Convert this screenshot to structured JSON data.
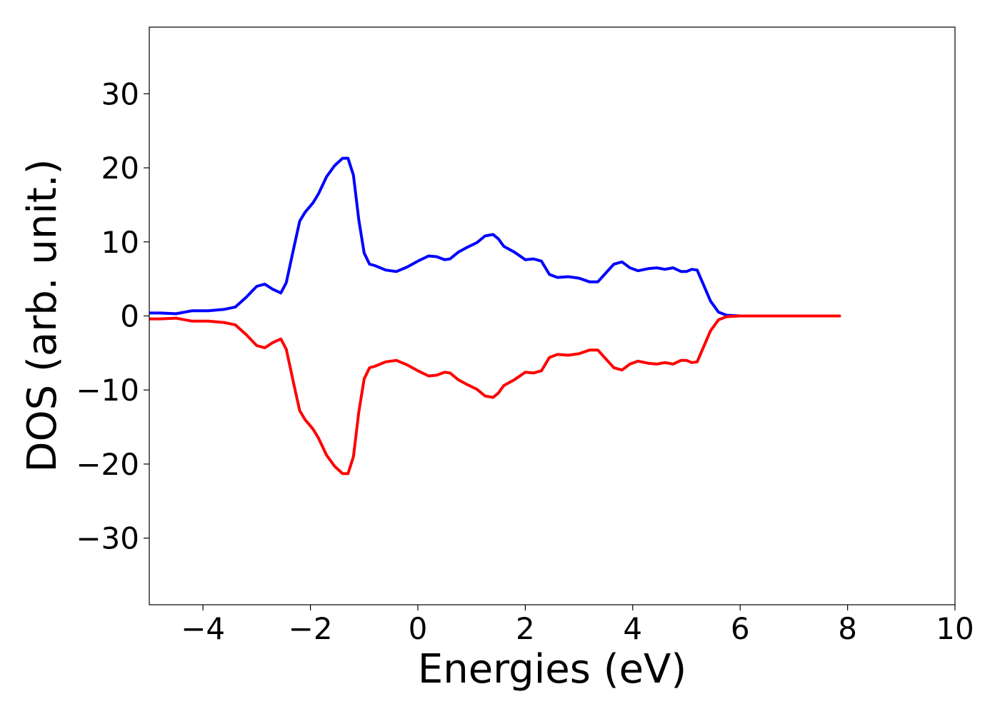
{
  "chart_data": {
    "type": "line",
    "title": "",
    "xlabel": "Energies (eV)",
    "ylabel": "DOS (arb. unit.)",
    "xlim": [
      -5,
      10
    ],
    "ylim": [
      -39,
      39
    ],
    "x_ticks": [
      -4,
      -2,
      0,
      2,
      4,
      6,
      8,
      10
    ],
    "x_tick_labels": [
      "−4",
      "−2",
      "0",
      "2",
      "4",
      "6",
      "8",
      "10"
    ],
    "y_ticks": [
      -30,
      -20,
      -10,
      0,
      10,
      20,
      30
    ],
    "y_tick_labels": [
      "−30",
      "−20",
      "−10",
      "0",
      "10",
      "20",
      "30"
    ],
    "grid": false,
    "legend": false,
    "series": [
      {
        "color": "#0000ff",
        "x": [
          -5.0,
          -4.8,
          -4.5,
          -4.2,
          -3.9,
          -3.6,
          -3.4,
          -3.2,
          -3.0,
          -2.85,
          -2.7,
          -2.55,
          -2.45,
          -2.3,
          -2.2,
          -2.1,
          -1.95,
          -1.85,
          -1.7,
          -1.55,
          -1.4,
          -1.3,
          -1.2,
          -1.1,
          -1.0,
          -0.9,
          -0.8,
          -0.6,
          -0.4,
          -0.2,
          0.0,
          0.2,
          0.35,
          0.5,
          0.6,
          0.75,
          0.9,
          1.1,
          1.25,
          1.4,
          1.5,
          1.6,
          1.8,
          2.0,
          2.15,
          2.3,
          2.45,
          2.6,
          2.8,
          3.0,
          3.2,
          3.35,
          3.5,
          3.65,
          3.8,
          3.95,
          4.1,
          4.3,
          4.45,
          4.6,
          4.75,
          4.9,
          5.0,
          5.1,
          5.2,
          5.3,
          5.45,
          5.6,
          5.75,
          6.0,
          6.5,
          7.0,
          7.5,
          7.85
        ],
        "values": [
          0.4,
          0.4,
          0.3,
          0.7,
          0.7,
          0.9,
          1.2,
          2.5,
          4.0,
          4.3,
          3.6,
          3.1,
          4.5,
          9.5,
          12.8,
          14.0,
          15.3,
          16.5,
          18.8,
          20.3,
          21.3,
          21.3,
          19.0,
          13.0,
          8.5,
          7.0,
          6.8,
          6.2,
          6.0,
          6.6,
          7.4,
          8.1,
          8.0,
          7.6,
          7.7,
          8.6,
          9.2,
          9.9,
          10.8,
          11.0,
          10.4,
          9.4,
          8.6,
          7.6,
          7.7,
          7.4,
          5.6,
          5.2,
          5.3,
          5.1,
          4.6,
          4.6,
          5.8,
          7.0,
          7.3,
          6.5,
          6.1,
          6.4,
          6.5,
          6.3,
          6.5,
          6.0,
          6.0,
          6.3,
          6.2,
          4.5,
          2.0,
          0.5,
          0.1,
          0.0,
          0.0,
          0.0,
          0.0,
          0.0
        ]
      },
      {
        "color": "#ff0000",
        "x": [
          -5.0,
          -4.8,
          -4.5,
          -4.2,
          -3.9,
          -3.6,
          -3.4,
          -3.2,
          -3.0,
          -2.85,
          -2.7,
          -2.55,
          -2.45,
          -2.3,
          -2.2,
          -2.1,
          -1.95,
          -1.85,
          -1.7,
          -1.55,
          -1.4,
          -1.3,
          -1.2,
          -1.1,
          -1.0,
          -0.9,
          -0.8,
          -0.6,
          -0.4,
          -0.2,
          0.0,
          0.2,
          0.35,
          0.5,
          0.6,
          0.75,
          0.9,
          1.1,
          1.25,
          1.4,
          1.5,
          1.6,
          1.8,
          2.0,
          2.15,
          2.3,
          2.45,
          2.6,
          2.8,
          3.0,
          3.2,
          3.35,
          3.5,
          3.65,
          3.8,
          3.95,
          4.1,
          4.3,
          4.45,
          4.6,
          4.75,
          4.9,
          5.0,
          5.1,
          5.2,
          5.3,
          5.45,
          5.6,
          5.75,
          6.0,
          6.5,
          7.0,
          7.5,
          7.85
        ],
        "values": [
          -0.4,
          -0.4,
          -0.3,
          -0.7,
          -0.7,
          -0.9,
          -1.2,
          -2.5,
          -4.0,
          -4.3,
          -3.6,
          -3.1,
          -4.5,
          -9.5,
          -12.8,
          -14.0,
          -15.3,
          -16.5,
          -18.8,
          -20.3,
          -21.3,
          -21.3,
          -19.0,
          -13.0,
          -8.5,
          -7.0,
          -6.8,
          -6.2,
          -6.0,
          -6.6,
          -7.4,
          -8.1,
          -8.0,
          -7.6,
          -7.7,
          -8.6,
          -9.2,
          -9.9,
          -10.8,
          -11.0,
          -10.4,
          -9.4,
          -8.6,
          -7.6,
          -7.7,
          -7.4,
          -5.6,
          -5.2,
          -5.3,
          -5.1,
          -4.6,
          -4.6,
          -5.8,
          -7.0,
          -7.3,
          -6.5,
          -6.1,
          -6.4,
          -6.5,
          -6.3,
          -6.5,
          -6.0,
          -6.0,
          -6.3,
          -6.2,
          -4.5,
          -2.0,
          -0.5,
          -0.1,
          0.0,
          0.0,
          0.0,
          0.0,
          0.0
        ]
      }
    ]
  }
}
